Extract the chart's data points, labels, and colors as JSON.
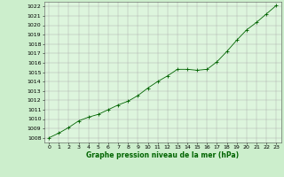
{
  "x": [
    0,
    1,
    2,
    3,
    4,
    5,
    6,
    7,
    8,
    9,
    10,
    11,
    12,
    13,
    14,
    15,
    16,
    17,
    18,
    19,
    20,
    21,
    22,
    23
  ],
  "y": [
    1008.0,
    1008.5,
    1009.1,
    1009.8,
    1010.2,
    1010.5,
    1011.0,
    1011.5,
    1011.9,
    1012.5,
    1013.3,
    1014.0,
    1014.6,
    1015.3,
    1015.3,
    1015.2,
    1015.3,
    1016.1,
    1017.2,
    1018.4,
    1019.5,
    1020.3,
    1021.2,
    1022.1
  ],
  "ylim": [
    1007.5,
    1022.5
  ],
  "xlim": [
    -0.5,
    23.5
  ],
  "yticks": [
    1008,
    1009,
    1010,
    1011,
    1012,
    1013,
    1014,
    1015,
    1016,
    1017,
    1018,
    1019,
    1020,
    1021,
    1022
  ],
  "xticks": [
    0,
    1,
    2,
    3,
    4,
    5,
    6,
    7,
    8,
    9,
    10,
    11,
    12,
    13,
    14,
    15,
    16,
    17,
    18,
    19,
    20,
    21,
    22,
    23
  ],
  "line_color": "#006400",
  "marker_color": "#006400",
  "bg_color": "#cceecc",
  "grid_color": "#aaaaaa",
  "plot_bg_color": "#ddf5dd",
  "xlabel": "Graphe pression niveau de la mer (hPa)",
  "tick_fontsize": 4.5,
  "label_fontsize": 5.5
}
